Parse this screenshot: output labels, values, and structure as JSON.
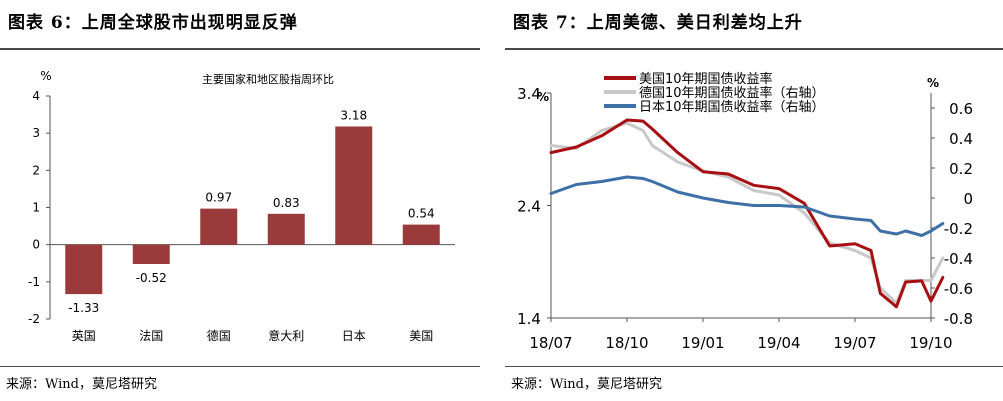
{
  "left_panel": {
    "figure_title": "图表 6：上周全球股市出现明显反弹",
    "source": "来源：Wind，莫尼塔研究"
  },
  "right_panel": {
    "figure_title": "图表 7：上周美德、美日利差均上升",
    "source": "来源：Wind，莫尼塔研究"
  },
  "chart_data": [
    {
      "type": "bar",
      "title": "主要国家和地区股指周环比",
      "ylabel": "%",
      "ylim": [
        -2,
        4
      ],
      "yticks": [
        "4",
        "3",
        "2",
        "1",
        "0",
        "-1",
        "-2"
      ],
      "ytick_values": [
        4,
        3,
        2,
        1,
        0,
        -1,
        -2
      ],
      "categories": [
        "英国",
        "法国",
        "德国",
        "意大利",
        "日本",
        "美国"
      ],
      "values": [
        -1.33,
        -0.52,
        0.97,
        0.83,
        3.18,
        0.54
      ],
      "data_labels": [
        "-1.33",
        "-0.52",
        "0.97",
        "0.83",
        "3.18",
        "0.54"
      ],
      "bar_color": "#9b3a3a",
      "grid": false
    },
    {
      "type": "line",
      "ylabel_left": "%",
      "ylabel_right": "%",
      "ylim_left": [
        1.4,
        3.4
      ],
      "ylim_right": [
        -0.8,
        0.7
      ],
      "yticks_left": [
        "3.4",
        "2.4",
        "1.4"
      ],
      "ytick_values_left": [
        3.4,
        2.4,
        1.4
      ],
      "yticks_right": [
        "0.6",
        "0.4",
        "0.2",
        "0",
        "-0.2",
        "-0.4",
        "-0.6",
        "-0.8"
      ],
      "ytick_values_right": [
        0.6,
        0.4,
        0.2,
        0,
        -0.2,
        -0.4,
        -0.6,
        -0.8
      ],
      "xticks": [
        "18/07",
        "18/10",
        "19/01",
        "19/04",
        "19/07",
        "19/10"
      ],
      "xtick_values": [
        "2018-07",
        "2018-10",
        "2019-01",
        "2019-04",
        "2019-07",
        "2019-10"
      ],
      "xlim": [
        "2018-07",
        "2019-10"
      ],
      "legend_position": "top",
      "grid": false,
      "series": [
        {
          "name": "美国10年期国债收益率",
          "axis": "left",
          "color": "#a80f12",
          "points": [
            [
              "2018-07",
              2.87
            ],
            [
              "2018-08",
              2.92
            ],
            [
              "2018-09",
              3.02
            ],
            [
              "2018-10",
              3.16
            ],
            [
              "2018-10-20",
              3.15
            ],
            [
              "2018-11",
              3.08
            ],
            [
              "2018-12",
              2.87
            ],
            [
              "2019-01",
              2.7
            ],
            [
              "2019-02",
              2.68
            ],
            [
              "2019-03",
              2.58
            ],
            [
              "2019-04",
              2.55
            ],
            [
              "2019-05",
              2.42
            ],
            [
              "2019-06",
              2.04
            ],
            [
              "2019-07",
              2.06
            ],
            [
              "2019-07-20",
              2.0
            ],
            [
              "2019-08",
              1.62
            ],
            [
              "2019-08-20",
              1.5
            ],
            [
              "2019-09",
              1.72
            ],
            [
              "2019-09-20",
              1.73
            ],
            [
              "2019-10",
              1.55
            ],
            [
              "2019-10-15",
              1.76
            ]
          ]
        },
        {
          "name": "德国10年期国债收益率（右轴）",
          "axis": "right",
          "color": "#c8c8c8",
          "points": [
            [
              "2018-07",
              0.35
            ],
            [
              "2018-08",
              0.33
            ],
            [
              "2018-09",
              0.45
            ],
            [
              "2018-10",
              0.5
            ],
            [
              "2018-10-20",
              0.45
            ],
            [
              "2018-11",
              0.35
            ],
            [
              "2018-12",
              0.24
            ],
            [
              "2019-01",
              0.18
            ],
            [
              "2019-02",
              0.14
            ],
            [
              "2019-03",
              0.05
            ],
            [
              "2019-04",
              0.02
            ],
            [
              "2019-05",
              -0.1
            ],
            [
              "2019-06",
              -0.3
            ],
            [
              "2019-07",
              -0.35
            ],
            [
              "2019-07-20",
              -0.4
            ],
            [
              "2019-08",
              -0.6
            ],
            [
              "2019-08-20",
              -0.7
            ],
            [
              "2019-09",
              -0.55
            ],
            [
              "2019-09-20",
              -0.55
            ],
            [
              "2019-10",
              -0.55
            ],
            [
              "2019-10-15",
              -0.4
            ]
          ]
        },
        {
          "name": "日本10年期国债收益率（右轴）",
          "axis": "right",
          "color": "#3e70a8",
          "points": [
            [
              "2018-07",
              0.03
            ],
            [
              "2018-08",
              0.09
            ],
            [
              "2018-09",
              0.11
            ],
            [
              "2018-10",
              0.14
            ],
            [
              "2018-10-20",
              0.13
            ],
            [
              "2018-11",
              0.11
            ],
            [
              "2018-12",
              0.04
            ],
            [
              "2019-01",
              0.0
            ],
            [
              "2019-02",
              -0.03
            ],
            [
              "2019-03",
              -0.05
            ],
            [
              "2019-04",
              -0.05
            ],
            [
              "2019-05",
              -0.06
            ],
            [
              "2019-06",
              -0.12
            ],
            [
              "2019-07",
              -0.14
            ],
            [
              "2019-07-20",
              -0.15
            ],
            [
              "2019-08",
              -0.22
            ],
            [
              "2019-08-20",
              -0.24
            ],
            [
              "2019-09",
              -0.22
            ],
            [
              "2019-09-20",
              -0.25
            ],
            [
              "2019-10",
              -0.22
            ],
            [
              "2019-10-15",
              -0.17
            ]
          ]
        }
      ]
    }
  ]
}
